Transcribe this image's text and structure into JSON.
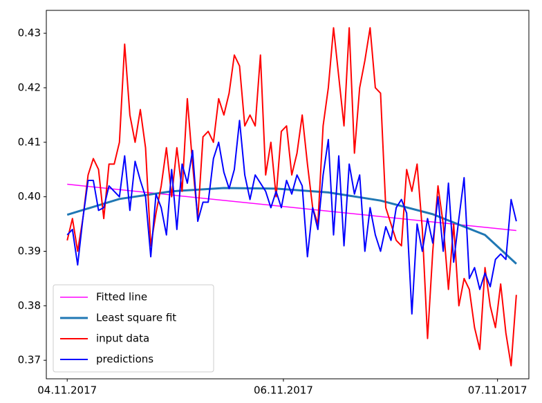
{
  "chart_data": {
    "type": "line",
    "x": [
      0,
      1,
      2,
      3,
      4,
      5,
      6,
      7,
      8,
      9,
      10,
      11,
      12,
      13,
      14,
      15,
      16,
      17,
      18,
      19,
      20,
      21,
      22,
      23,
      24,
      25,
      26,
      27,
      28,
      29,
      30,
      31,
      32,
      33,
      34,
      35,
      36,
      37,
      38,
      39,
      40,
      41,
      42,
      43,
      44,
      45,
      46,
      47,
      48,
      49,
      50,
      51,
      52,
      53,
      54,
      55,
      56,
      57,
      58,
      59,
      60,
      61,
      62,
      63,
      64,
      65,
      66,
      67,
      68,
      69,
      70,
      71,
      72,
      73,
      74,
      75,
      76,
      77,
      78,
      79,
      80,
      81,
      82,
      83,
      84,
      85,
      86
    ],
    "series": [
      {
        "name": "Fitted line",
        "color": "#ff00ff",
        "width": 1.5,
        "x": [
          0,
          86
        ],
        "values": [
          0.4023,
          0.3938
        ]
      },
      {
        "name": "Least square fit",
        "color": "#1f77b4",
        "width": 3,
        "x": [
          0,
          10,
          20,
          30,
          40,
          50,
          60,
          70,
          80,
          86
        ],
        "values": [
          0.3967,
          0.3996,
          0.401,
          0.4016,
          0.4015,
          0.4008,
          0.3993,
          0.3968,
          0.393,
          0.3877
        ]
      },
      {
        "name": "input data",
        "color": "#ff0000",
        "width": 2,
        "values": [
          0.392,
          0.396,
          0.39,
          0.396,
          0.404,
          0.407,
          0.405,
          0.396,
          0.406,
          0.406,
          0.41,
          0.428,
          0.415,
          0.41,
          0.416,
          0.409,
          0.391,
          0.397,
          0.402,
          0.409,
          0.4,
          0.409,
          0.401,
          0.418,
          0.406,
          0.396,
          0.411,
          0.412,
          0.41,
          0.418,
          0.415,
          0.419,
          0.426,
          0.424,
          0.413,
          0.415,
          0.413,
          0.426,
          0.404,
          0.41,
          0.4,
          0.412,
          0.413,
          0.404,
          0.408,
          0.415,
          0.406,
          0.398,
          0.395,
          0.413,
          0.42,
          0.431,
          0.422,
          0.413,
          0.431,
          0.408,
          0.42,
          0.425,
          0.431,
          0.42,
          0.419,
          0.398,
          0.395,
          0.392,
          0.391,
          0.405,
          0.401,
          0.406,
          0.394,
          0.374,
          0.39,
          0.402,
          0.395,
          0.383,
          0.395,
          0.38,
          0.385,
          0.383,
          0.376,
          0.372,
          0.387,
          0.38,
          0.376,
          0.384,
          0.375,
          0.369,
          0.382
        ]
      },
      {
        "name": "predictions",
        "color": "#0000ff",
        "width": 2,
        "values": [
          0.393,
          0.394,
          0.3875,
          0.396,
          0.403,
          0.403,
          0.3975,
          0.398,
          0.402,
          0.401,
          0.4,
          0.4075,
          0.3975,
          0.4065,
          0.403,
          0.4,
          0.389,
          0.4005,
          0.398,
          0.393,
          0.405,
          0.394,
          0.406,
          0.4025,
          0.4085,
          0.3955,
          0.399,
          0.399,
          0.407,
          0.41,
          0.4045,
          0.4015,
          0.405,
          0.414,
          0.404,
          0.3995,
          0.404,
          0.4025,
          0.401,
          0.398,
          0.401,
          0.398,
          0.403,
          0.4005,
          0.404,
          0.402,
          0.389,
          0.398,
          0.394,
          0.404,
          0.4105,
          0.393,
          0.4075,
          0.391,
          0.406,
          0.4005,
          0.404,
          0.39,
          0.398,
          0.393,
          0.39,
          0.3945,
          0.392,
          0.398,
          0.3995,
          0.397,
          0.3785,
          0.395,
          0.39,
          0.396,
          0.3915,
          0.4,
          0.39,
          0.4025,
          0.388,
          0.396,
          0.4035,
          0.385,
          0.387,
          0.383,
          0.386,
          0.3835,
          0.3885,
          0.3895,
          0.3885,
          0.3995,
          0.3955
        ]
      }
    ],
    "xlim": [
      -4,
      88.4
    ],
    "xticks": [
      {
        "value": 0,
        "label": "04.11.2017"
      },
      {
        "value": 41.4,
        "label": "06.11.2017"
      },
      {
        "value": 82.4,
        "label": "07.11.2017"
      }
    ],
    "ylim": [
      0.3666,
      0.4342
    ],
    "yticks": [
      0.37,
      0.38,
      0.39,
      {
        "value": 0.4,
        "label": "0.40"
      },
      0.41,
      0.42,
      0.43
    ],
    "legend": "lower left"
  }
}
